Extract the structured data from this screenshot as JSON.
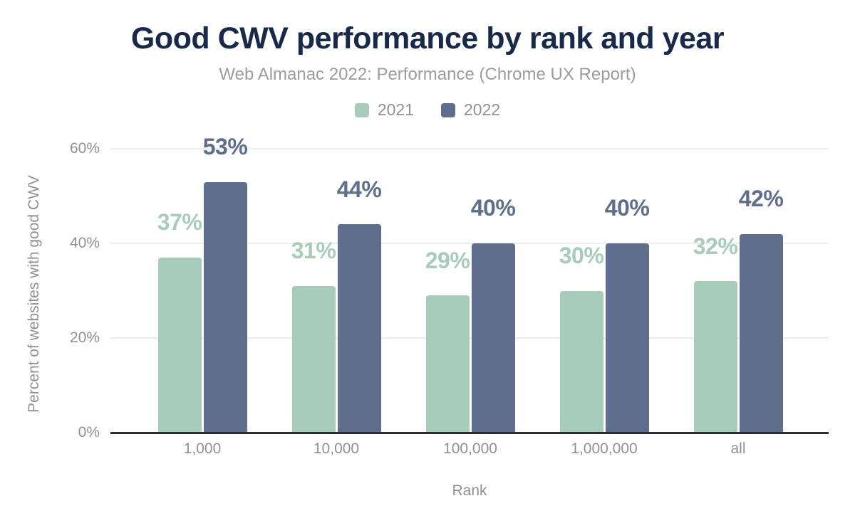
{
  "header": {
    "title": "Good CWV performance by rank and year",
    "subtitle": "Web Almanac 2022: Performance (Chrome UX Report)"
  },
  "colors": {
    "title_text": "#19294a",
    "muted_text": "#8e9092",
    "subtitle_text": "#9b9c9e",
    "gridline": "#ececec",
    "axis_line": "#2d2d2e",
    "series_2021": "#a8ccba",
    "series_2022": "#5e6e8c",
    "background": "#ffffff"
  },
  "chart_data": {
    "type": "bar",
    "title": "Good CWV performance by rank and year",
    "subtitle": "Web Almanac 2022: Performance (Chrome UX Report)",
    "categories": [
      "1,000",
      "10,000",
      "100,000",
      "1,000,000",
      "all"
    ],
    "series": [
      {
        "name": "2021",
        "color": "#a8ccba",
        "values": [
          37,
          31,
          29,
          30,
          32
        ]
      },
      {
        "name": "2022",
        "color": "#5e6e8c",
        "values": [
          53,
          44,
          40,
          40,
          42
        ]
      }
    ],
    "value_suffix": "%",
    "xlabel": "Rank",
    "ylabel": "Percent of websites with good CWV",
    "yticks": [
      {
        "value": 0,
        "label": "0%"
      },
      {
        "value": 20,
        "label": "20%"
      },
      {
        "value": 40,
        "label": "40%"
      },
      {
        "value": 60,
        "label": "60%"
      }
    ],
    "ylim": [
      0,
      60
    ],
    "grid": true,
    "legend_position": "top",
    "bar_value_labels_shown": true
  }
}
